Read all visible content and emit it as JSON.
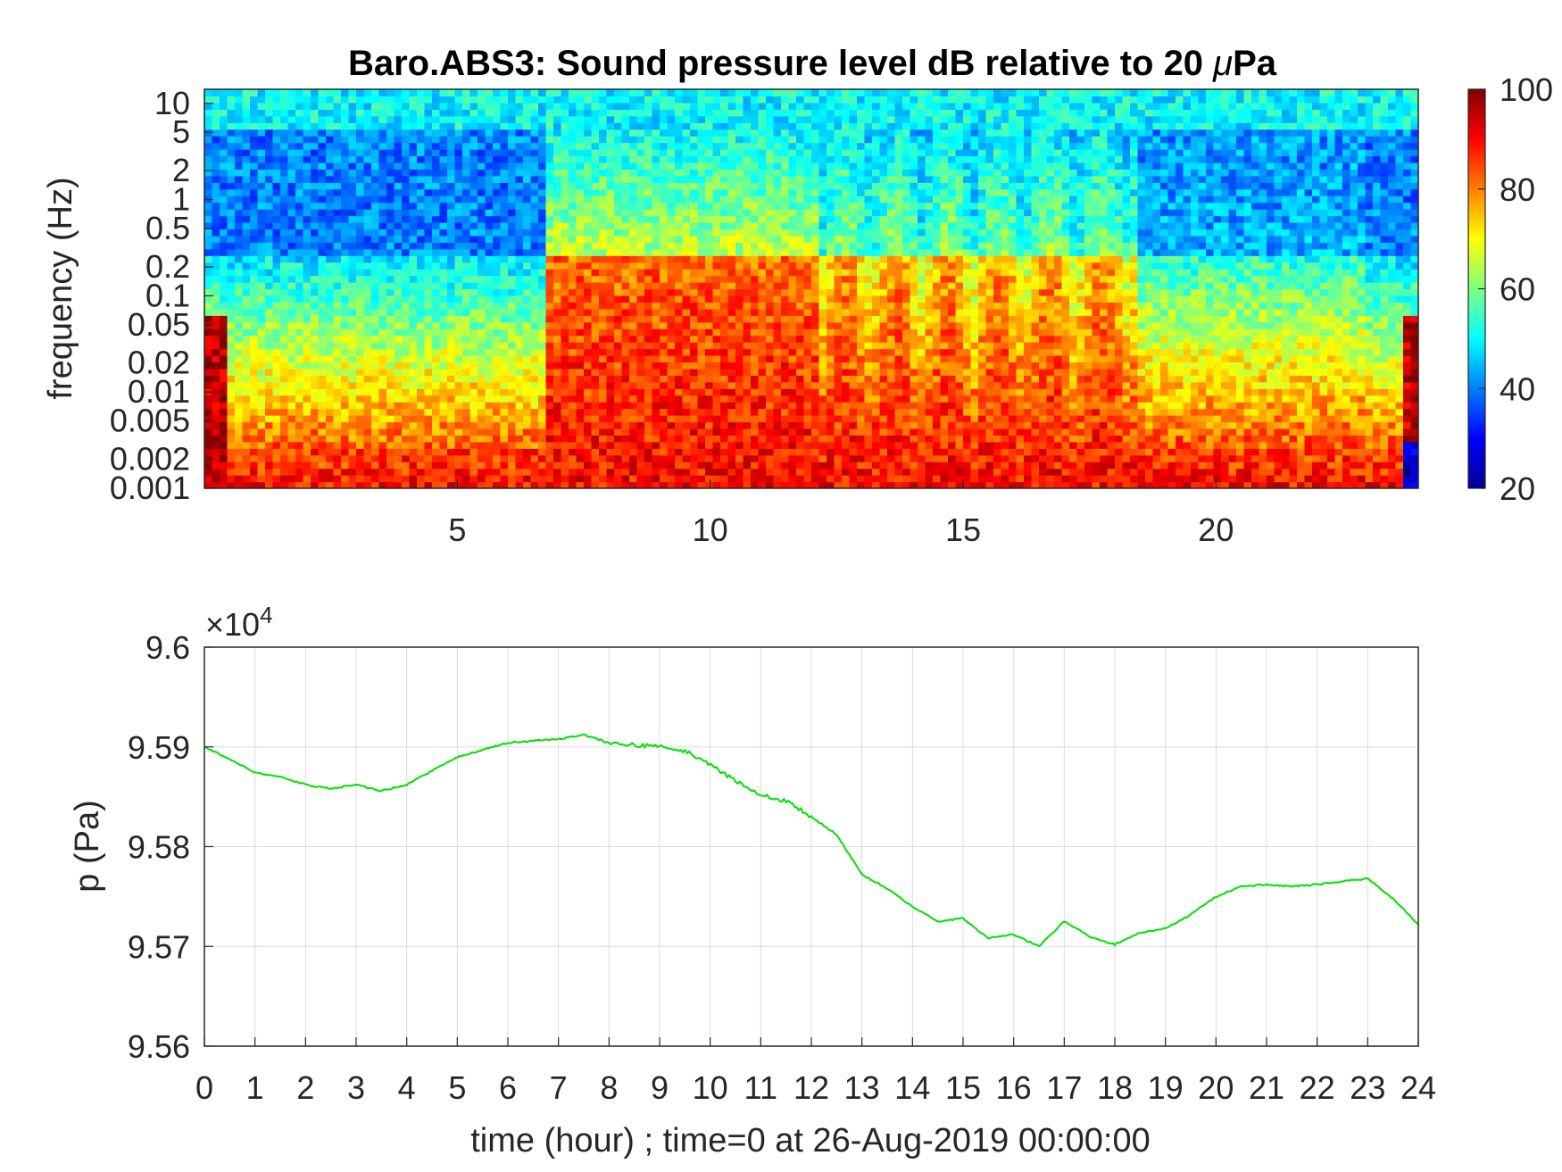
{
  "chart_data": [
    {
      "type": "heatmap",
      "title_prefix": "Baro.ABS3: Sound pressure level dB relative to 20 ",
      "title_mu": "μ",
      "title_suffix": "Pa",
      "ylabel": "frequency (Hz)",
      "xlabel": "",
      "xlim": [
        0,
        24
      ],
      "ylim": [
        0.001,
        14
      ],
      "yscale": "log",
      "x_ticks": [
        "5",
        "10",
        "15",
        "20"
      ],
      "x_tick_values": [
        5,
        10,
        15,
        20
      ],
      "y_ticks": [
        "10",
        "5",
        "2",
        "1",
        "0.5",
        "0.2",
        "0.1",
        "0.05",
        "0.02",
        "0.01",
        "0.005",
        "0.002",
        "0.001"
      ],
      "y_tick_values": [
        10,
        5,
        2,
        1,
        0.5,
        0.2,
        0.1,
        0.05,
        0.02,
        0.01,
        0.005,
        0.002,
        0.001
      ],
      "colorbar": {
        "min": 20,
        "max": 100,
        "ticks": [
          "100",
          "80",
          "60",
          "40",
          "20"
        ],
        "tick_values": [
          100,
          80,
          60,
          40,
          20
        ],
        "colormap": "jet"
      },
      "description_levels": {
        "high_freq_band_db": 50,
        "quiet_period_mid_freq_db": 40,
        "active_period_hours": [
          7,
          12
        ],
        "active_period_db": 90,
        "low_freq_floor_db": 90
      }
    },
    {
      "type": "line",
      "x": [
        0,
        0.5,
        1,
        1.5,
        2,
        2.5,
        3,
        3.5,
        4,
        4.5,
        5,
        5.5,
        6,
        6.5,
        7,
        7.5,
        8,
        8.5,
        9,
        9.5,
        10,
        10.5,
        11,
        11.5,
        12,
        12.5,
        13,
        13.5,
        14,
        14.5,
        15,
        15.5,
        16,
        16.5,
        17,
        17.5,
        18,
        18.5,
        19,
        19.5,
        20,
        20.5,
        21,
        21.5,
        22,
        22.5,
        23,
        23.5,
        24
      ],
      "y": [
        95900,
        95888,
        95874,
        95870,
        95862,
        95858,
        95862,
        95856,
        95862,
        95876,
        95890,
        95897,
        95904,
        95906,
        95908,
        95912,
        95904,
        95902,
        95900,
        95896,
        95882,
        95866,
        95852,
        95846,
        95830,
        95812,
        95772,
        95758,
        95740,
        95725,
        95728,
        95708,
        95712,
        95700,
        95725,
        95710,
        95702,
        95714,
        95718,
        95732,
        95750,
        95760,
        95762,
        95760,
        95762,
        95765,
        95768,
        95748,
        95722
      ],
      "series": [
        {
          "name": "",
          "color": "#00e000"
        }
      ],
      "xlabel": "time (hour) ; time=0 at 26-Aug-2019 00:00:00",
      "ylabel": "p (Pa)",
      "xlim": [
        0,
        24
      ],
      "ylim": [
        95600,
        96000
      ],
      "x_ticks": [
        "0",
        "1",
        "2",
        "3",
        "4",
        "5",
        "6",
        "7",
        "8",
        "9",
        "10",
        "11",
        "12",
        "13",
        "14",
        "15",
        "16",
        "17",
        "18",
        "19",
        "20",
        "21",
        "22",
        "23",
        "24"
      ],
      "y_ticks": [
        "9.6",
        "9.59",
        "9.58",
        "9.57",
        "9.56"
      ],
      "y_tick_values": [
        96000,
        95900,
        95800,
        95700,
        95600
      ],
      "exponent_base": "×10",
      "exponent_power": "4",
      "grid": true
    }
  ]
}
